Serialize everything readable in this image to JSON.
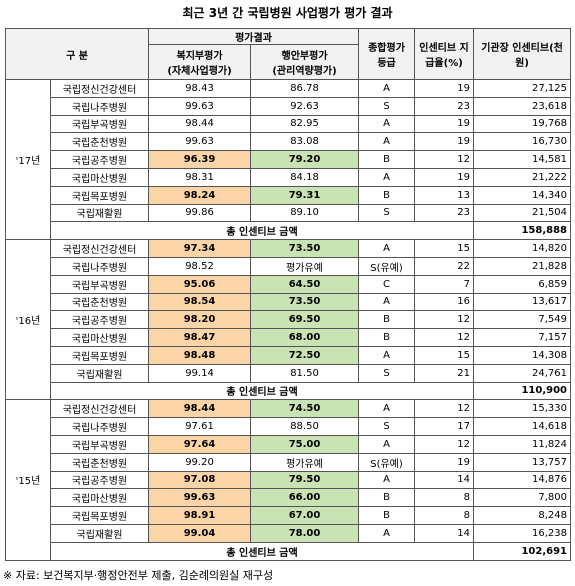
{
  "title": "최근 3년 간 국립병원 사업평가 평가 결과",
  "header": {
    "category": "구 분",
    "evaluation": "평가결과",
    "welfare": "복지부평가",
    "welfare_sub": "(자체사업평가)",
    "mois": "행안부평가",
    "mois_sub": "(관리역량평가)",
    "grade": "종합평가 등급",
    "rate": "인센티브 지급율(%)",
    "incentive": "기관장 인센티브(천원)"
  },
  "groups": [
    {
      "year": "'17년",
      "total_label": "총 인센티브 금액",
      "total": "158,888",
      "rows": [
        {
          "name": "국립정신건강센터",
          "welfare": "98.43",
          "mois": "86.78",
          "grade": "A",
          "rate": "19",
          "incentive": "27,125",
          "highlight": false
        },
        {
          "name": "국립나주병원",
          "welfare": "99.63",
          "mois": "92.63",
          "grade": "S",
          "rate": "23",
          "incentive": "23,618",
          "highlight": false
        },
        {
          "name": "국립부곡병원",
          "welfare": "98.44",
          "mois": "82.95",
          "grade": "A",
          "rate": "19",
          "incentive": "19,768",
          "highlight": false
        },
        {
          "name": "국립춘천병원",
          "welfare": "99.63",
          "mois": "83.08",
          "grade": "A",
          "rate": "19",
          "incentive": "16,730",
          "highlight": false
        },
        {
          "name": "국립공주병원",
          "welfare": "96.39",
          "mois": "79.20",
          "grade": "B",
          "rate": "12",
          "incentive": "14,581",
          "highlight": true
        },
        {
          "name": "국립마산병원",
          "welfare": "98.31",
          "mois": "84.18",
          "grade": "A",
          "rate": "19",
          "incentive": "21,222",
          "highlight": false
        },
        {
          "name": "국립목포병원",
          "welfare": "98.24",
          "mois": "79.31",
          "grade": "B",
          "rate": "13",
          "incentive": "14,340",
          "highlight": true
        },
        {
          "name": "국립재활원",
          "welfare": "99.86",
          "mois": "89.10",
          "grade": "S",
          "rate": "23",
          "incentive": "21,504",
          "highlight": false
        }
      ]
    },
    {
      "year": "'16년",
      "total_label": "총 인센티브 금액",
      "total": "110,900",
      "rows": [
        {
          "name": "국립정신건강센터",
          "welfare": "97.34",
          "mois": "73.50",
          "grade": "A",
          "rate": "15",
          "incentive": "14,820",
          "highlight": true
        },
        {
          "name": "국립나주병원",
          "welfare": "98.52",
          "mois": "평가유예",
          "grade": "S(유예)",
          "rate": "22",
          "incentive": "21,828",
          "highlight": false
        },
        {
          "name": "국립부곡병원",
          "welfare": "95.06",
          "mois": "64.50",
          "grade": "C",
          "rate": "7",
          "incentive": "6,859",
          "highlight": true
        },
        {
          "name": "국립춘천병원",
          "welfare": "98.54",
          "mois": "73.50",
          "grade": "A",
          "rate": "16",
          "incentive": "13,617",
          "highlight": true
        },
        {
          "name": "국립공주병원",
          "welfare": "98.20",
          "mois": "69.50",
          "grade": "B",
          "rate": "12",
          "incentive": "7,549",
          "highlight": true
        },
        {
          "name": "국립마산병원",
          "welfare": "98.47",
          "mois": "68.00",
          "grade": "B",
          "rate": "12",
          "incentive": "7,157",
          "highlight": true
        },
        {
          "name": "국립목포병원",
          "welfare": "98.48",
          "mois": "72.50",
          "grade": "A",
          "rate": "15",
          "incentive": "14,308",
          "highlight": true
        },
        {
          "name": "국립재활원",
          "welfare": "99.14",
          "mois": "81.50",
          "grade": "S",
          "rate": "21",
          "incentive": "24,761",
          "highlight": false
        }
      ]
    },
    {
      "year": "'15년",
      "total_label": "총 인센티브 금액",
      "total": "102,691",
      "rows": [
        {
          "name": "국립정신건강센터",
          "welfare": "98.44",
          "mois": "74.50",
          "grade": "A",
          "rate": "12",
          "incentive": "15,330",
          "highlight": true
        },
        {
          "name": "국립나주병원",
          "welfare": "97.61",
          "mois": "88.50",
          "grade": "S",
          "rate": "17",
          "incentive": "14,618",
          "highlight": false
        },
        {
          "name": "국립부곡병원",
          "welfare": "97.64",
          "mois": "75.00",
          "grade": "A",
          "rate": "12",
          "incentive": "11,824",
          "highlight": true
        },
        {
          "name": "국립춘천병원",
          "welfare": "99.20",
          "mois": "평가유예",
          "grade": "S(유예)",
          "rate": "19",
          "incentive": "13,757",
          "highlight": false
        },
        {
          "name": "국립공주병원",
          "welfare": "97.08",
          "mois": "79.50",
          "grade": "A",
          "rate": "14",
          "incentive": "14,876",
          "highlight": true
        },
        {
          "name": "국립마산병원",
          "welfare": "99.63",
          "mois": "66.00",
          "grade": "B",
          "rate": "8",
          "incentive": "7,800",
          "highlight": true
        },
        {
          "name": "국립목포병원",
          "welfare": "98.91",
          "mois": "67.00",
          "grade": "B",
          "rate": "8",
          "incentive": "8,248",
          "highlight": true
        },
        {
          "name": "국립재활원",
          "welfare": "99.04",
          "mois": "78.00",
          "grade": "A",
          "rate": "14",
          "incentive": "16,238",
          "highlight": true
        }
      ]
    }
  ],
  "footer": "※ 자료: 보건복지부·행정안전부 제출, 김순례의원실 재구성"
}
